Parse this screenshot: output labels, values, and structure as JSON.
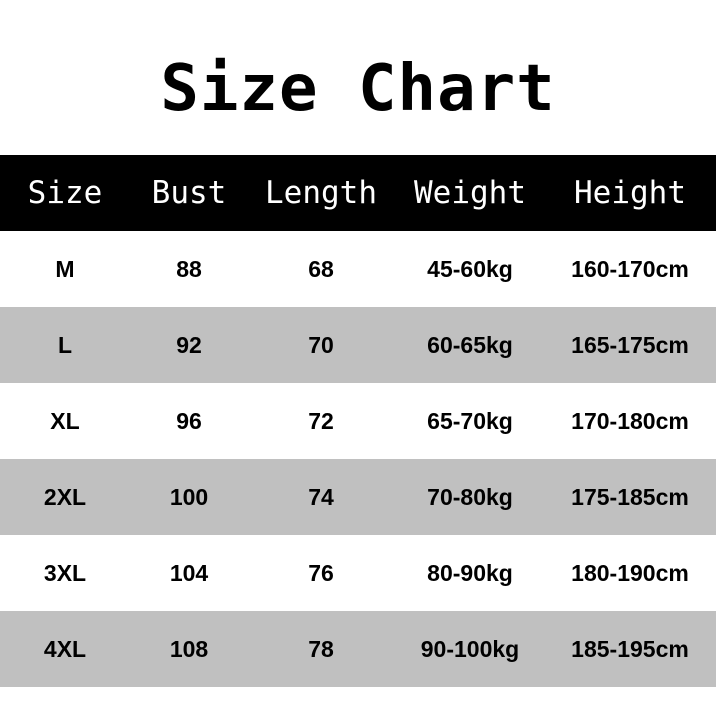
{
  "title": "Size Chart",
  "colors": {
    "header_bg": "#000000",
    "header_text": "#ffffff",
    "stripe": "#c0c0c0"
  },
  "chart_data": {
    "type": "table",
    "title": "Size Chart",
    "columns": [
      "Size",
      "Bust",
      "Length",
      "Weight",
      "Height"
    ],
    "rows": [
      [
        "M",
        "88",
        "68",
        "45-60kg",
        "160-170cm"
      ],
      [
        "L",
        "92",
        "70",
        "60-65kg",
        "165-175cm"
      ],
      [
        "XL",
        "96",
        "72",
        "65-70kg",
        "170-180cm"
      ],
      [
        "2XL",
        "100",
        "74",
        "70-80kg",
        "175-185cm"
      ],
      [
        "3XL",
        "104",
        "76",
        "80-90kg",
        "180-190cm"
      ],
      [
        "4XL",
        "108",
        "78",
        "90-100kg",
        "185-195cm"
      ]
    ]
  }
}
